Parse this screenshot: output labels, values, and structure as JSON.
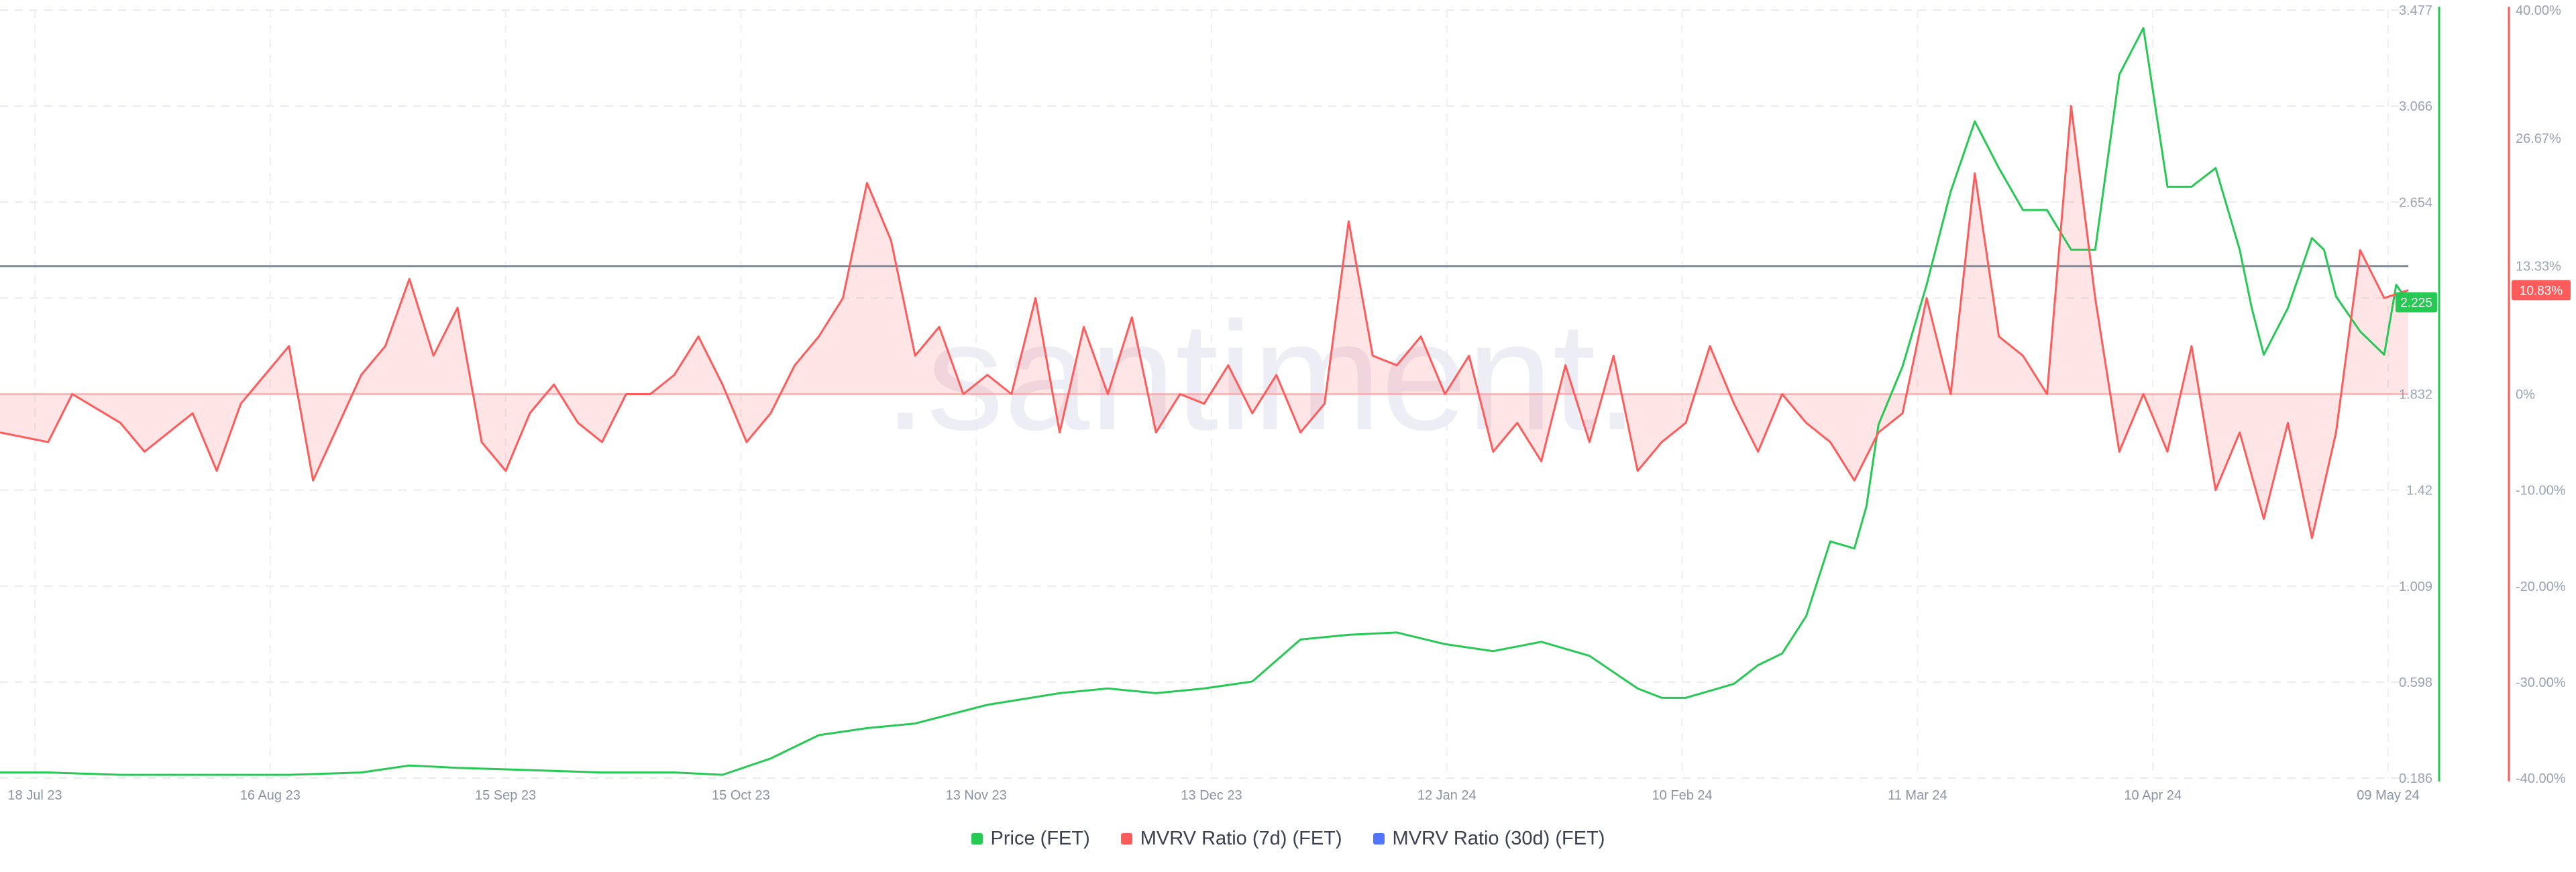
{
  "watermark": ".santiment.",
  "legend": [
    {
      "label": "Price (FET)",
      "color": "#26c953"
    },
    {
      "label": "MVRV Ratio (7d) (FET)",
      "color": "#ff5b5b"
    },
    {
      "label": "MVRV Ratio (30d) (FET)",
      "color": "#5275ff"
    }
  ],
  "badges": {
    "price": "2.225",
    "mvrv": "10.83%"
  },
  "chart_data": {
    "type": "line",
    "x_tick_labels": [
      "18 Jul 23",
      "16 Aug 23",
      "15 Sep 23",
      "15 Oct 23",
      "13 Nov 23",
      "13 Dec 23",
      "12 Jan 24",
      "10 Feb 24",
      "11 Mar 24",
      "10 Apr 24",
      "09 May 24"
    ],
    "left_axis": {
      "ticks": [
        "3.477",
        "3.066",
        "2.654",
        "2.243",
        "1.832",
        "1.42",
        "1.009",
        "0.598",
        "0.186"
      ],
      "ylim": [
        0.186,
        3.477
      ],
      "color": "#26c953"
    },
    "right_axis": {
      "ticks": [
        "40.00%",
        "26.67%",
        "13.33%",
        "0%",
        "-10.00%",
        "-20.00%",
        "-30.00%",
        "-40.00%"
      ],
      "ylim": [
        -40,
        40
      ],
      "color": "#ff5b5b"
    },
    "reference_value_pct": 13.33,
    "x_range": [
      0,
      1
    ],
    "series": [
      {
        "name": "Price (FET)",
        "axis": "left",
        "color": "#26c953",
        "x": [
          0,
          0.02,
          0.05,
          0.09,
          0.12,
          0.15,
          0.17,
          0.19,
          0.22,
          0.25,
          0.28,
          0.3,
          0.32,
          0.34,
          0.36,
          0.38,
          0.41,
          0.44,
          0.46,
          0.48,
          0.5,
          0.52,
          0.54,
          0.56,
          0.58,
          0.6,
          0.62,
          0.64,
          0.66,
          0.68,
          0.69,
          0.7,
          0.71,
          0.72,
          0.73,
          0.74,
          0.75,
          0.76,
          0.77,
          0.775,
          0.78,
          0.79,
          0.8,
          0.81,
          0.82,
          0.83,
          0.84,
          0.85,
          0.86,
          0.87,
          0.88,
          0.89,
          0.9,
          0.91,
          0.92,
          0.93,
          0.935,
          0.94,
          0.95,
          0.96,
          0.965,
          0.97,
          0.98,
          0.99,
          0.995,
          1.0
        ],
        "y": [
          0.21,
          0.21,
          0.2,
          0.2,
          0.2,
          0.21,
          0.24,
          0.23,
          0.22,
          0.21,
          0.21,
          0.2,
          0.27,
          0.37,
          0.4,
          0.42,
          0.5,
          0.55,
          0.57,
          0.55,
          0.57,
          0.6,
          0.78,
          0.8,
          0.81,
          0.76,
          0.73,
          0.77,
          0.71,
          0.57,
          0.53,
          0.53,
          0.56,
          0.59,
          0.67,
          0.72,
          0.88,
          1.2,
          1.17,
          1.35,
          1.7,
          1.95,
          2.3,
          2.7,
          3.0,
          2.8,
          2.62,
          2.62,
          2.45,
          2.45,
          3.2,
          3.4,
          2.72,
          2.72,
          2.8,
          2.45,
          2.2,
          2.0,
          2.2,
          2.5,
          2.45,
          2.25,
          2.1,
          2.0,
          2.3,
          2.225
        ]
      },
      {
        "name": "MVRV Ratio (7d) (FET)",
        "axis": "right",
        "color": "#ff5b5b",
        "x": [
          0,
          0.02,
          0.03,
          0.05,
          0.06,
          0.08,
          0.09,
          0.1,
          0.12,
          0.13,
          0.15,
          0.16,
          0.17,
          0.18,
          0.19,
          0.2,
          0.21,
          0.22,
          0.23,
          0.24,
          0.25,
          0.26,
          0.27,
          0.28,
          0.29,
          0.3,
          0.31,
          0.32,
          0.33,
          0.34,
          0.35,
          0.36,
          0.37,
          0.38,
          0.39,
          0.4,
          0.41,
          0.42,
          0.43,
          0.44,
          0.45,
          0.46,
          0.47,
          0.48,
          0.49,
          0.5,
          0.51,
          0.52,
          0.53,
          0.54,
          0.55,
          0.56,
          0.57,
          0.58,
          0.59,
          0.6,
          0.61,
          0.62,
          0.63,
          0.64,
          0.65,
          0.66,
          0.67,
          0.68,
          0.69,
          0.7,
          0.71,
          0.72,
          0.73,
          0.74,
          0.75,
          0.76,
          0.77,
          0.78,
          0.79,
          0.8,
          0.81,
          0.82,
          0.83,
          0.84,
          0.85,
          0.86,
          0.87,
          0.88,
          0.89,
          0.9,
          0.91,
          0.92,
          0.93,
          0.94,
          0.95,
          0.96,
          0.97,
          0.98,
          0.99,
          1.0
        ],
        "y": [
          -4,
          -5,
          0,
          -3,
          -6,
          -2,
          -8,
          -1,
          5,
          -9,
          2,
          5,
          12,
          4,
          9,
          -5,
          -8,
          -2,
          1,
          -3,
          -5,
          0,
          0,
          2,
          6,
          1,
          -5,
          -2,
          3,
          6,
          10,
          22,
          16,
          4,
          7,
          0,
          2,
          0,
          10,
          -4,
          7,
          0,
          8,
          -4,
          0,
          -1,
          3,
          -2,
          2,
          -4,
          -1,
          18,
          4,
          3,
          6,
          0,
          4,
          -6,
          -3,
          -7,
          3,
          -5,
          4,
          -8,
          -5,
          -3,
          5,
          -1,
          -6,
          0,
          -3,
          -5,
          -9,
          -4,
          -2,
          10,
          0,
          23,
          6,
          4,
          0,
          30,
          10,
          -6,
          0,
          -6,
          5,
          -10,
          -4,
          -13,
          -3,
          -15,
          -4,
          15,
          10,
          10.83
        ]
      },
      {
        "name": "MVRV Ratio (30d) (FET)",
        "axis": "right",
        "color": "#5275ff",
        "x": [],
        "y": []
      }
    ]
  }
}
